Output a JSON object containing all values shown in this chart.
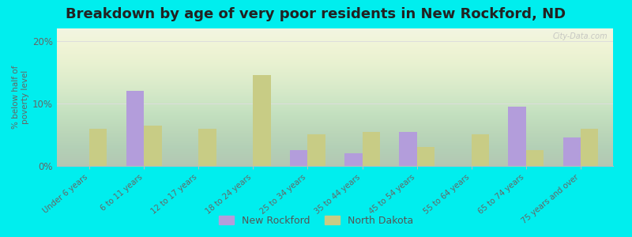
{
  "title": "Breakdown by age of very poor residents in New Rockford, ND",
  "ylabel": "% below half of\npoverty level",
  "categories": [
    "Under 6 years",
    "6 to 11 years",
    "12 to 17 years",
    "18 to 24 years",
    "25 to 34 years",
    "35 to 44 years",
    "45 to 54 years",
    "55 to 64 years",
    "65 to 74 years",
    "75 years and over"
  ],
  "new_rockford": [
    0,
    12.0,
    0,
    0,
    2.5,
    2.0,
    5.5,
    0,
    9.5,
    4.5
  ],
  "north_dakota": [
    6.0,
    6.5,
    6.0,
    14.5,
    5.0,
    5.5,
    3.0,
    5.0,
    2.5,
    6.0
  ],
  "nr_color": "#b39ddb",
  "nd_color": "#c8cc85",
  "background_color": "#00eeee",
  "plot_bg_color": "#eef2e0",
  "ylim": [
    0,
    22
  ],
  "yticks": [
    0,
    10,
    20
  ],
  "ytick_labels": [
    "0%",
    "10%",
    "20%"
  ],
  "legend_nr": "New Rockford",
  "legend_nd": "North Dakota",
  "title_fontsize": 13,
  "bar_width": 0.32,
  "watermark": "City-Data.com"
}
